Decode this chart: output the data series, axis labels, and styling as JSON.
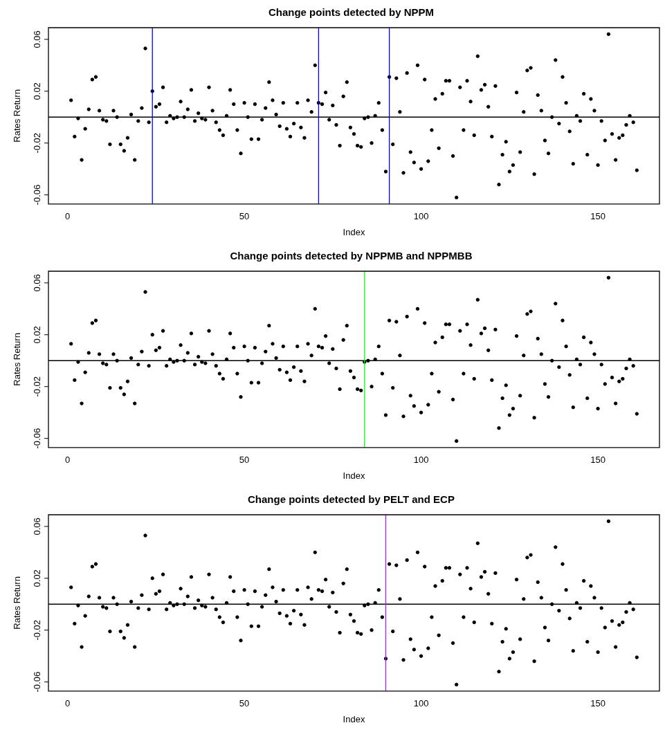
{
  "chart_data": [
    {
      "type": "scatter",
      "title": "Change points detected by NPPM",
      "xlabel": "Index",
      "ylabel": "Rates Return",
      "marker": "circle",
      "grid": false,
      "legend": false,
      "x": [
        1,
        2,
        3,
        4,
        5,
        6,
        7,
        8,
        9,
        10,
        11,
        12,
        13,
        14,
        15,
        16,
        17,
        18,
        19,
        20,
        21,
        22,
        23,
        24,
        25,
        26,
        27,
        28,
        29,
        30,
        31,
        32,
        33,
        34,
        35,
        36,
        37,
        38,
        39,
        40,
        41,
        42,
        43,
        44,
        45,
        46,
        47,
        48,
        49,
        50,
        51,
        52,
        53,
        54,
        55,
        56,
        57,
        58,
        59,
        60,
        61,
        62,
        63,
        64,
        65,
        66,
        67,
        68,
        69,
        70,
        71,
        72,
        73,
        74,
        75,
        76,
        77,
        78,
        79,
        80,
        81,
        82,
        83,
        84,
        85,
        86,
        87,
        88,
        89,
        90,
        91,
        92,
        93,
        94,
        95,
        96,
        97,
        98,
        99,
        100,
        101,
        102,
        103,
        104,
        105,
        106,
        107,
        108,
        109,
        110,
        111,
        112,
        113,
        114,
        115,
        116,
        117,
        118,
        119,
        120,
        121,
        122,
        123,
        124,
        125,
        126,
        127,
        128,
        129,
        130,
        131,
        132,
        133,
        134,
        135,
        136,
        137,
        138,
        139,
        140,
        141,
        142,
        143,
        144,
        145,
        146,
        147,
        148,
        149,
        150,
        151,
        152,
        153,
        154,
        155,
        156,
        157,
        158,
        159,
        160,
        161
      ],
      "series": [
        {
          "color": "#000000",
          "values": [
            0.013,
            -0.015,
            -0.001,
            -0.033,
            -0.009,
            0.006,
            0.029,
            0.031,
            0.005,
            -0.002,
            -0.003,
            -0.021,
            0.005,
            0,
            -0.021,
            -0.026,
            -0.016,
            0.002,
            -0.033,
            -0.003,
            0.007,
            0.053,
            -0.004,
            0.02,
            0.008,
            0.01,
            0.023,
            -0.004,
            0.001,
            -0.001,
            0,
            0.012,
            0,
            0.006,
            0.021,
            -0.003,
            0.003,
            -0.001,
            -0.002,
            0.023,
            0.005,
            -0.004,
            -0.01,
            -0.014,
            0.001,
            0.021,
            0.01,
            -0.01,
            -0.028,
            0.011,
            0,
            -0.017,
            0.01,
            -0.017,
            -0.002,
            0.007,
            0.027,
            0.013,
            0.002,
            -0.007,
            0.011,
            -0.009,
            -0.015,
            -0.005,
            0.011,
            -0.008,
            -0.016,
            0.013,
            0.004,
            0.04,
            0.011,
            0.01,
            0.019,
            -0.002,
            0.009,
            -0.006,
            -0.022,
            0.016,
            0.027,
            -0.008,
            -0.013,
            -0.022,
            -0.023,
            -0.001,
            0,
            -0.02,
            0.001,
            0.011,
            -0.01,
            -0.042,
            0.031,
            -0.021,
            0.03,
            0.004,
            -0.043,
            0.034,
            -0.027,
            -0.035,
            0.04,
            -0.04,
            0.029,
            -0.034,
            -0.01,
            0.014,
            -0.024,
            0.018,
            0.028,
            0.028,
            -0.03,
            -0.062,
            0.023,
            -0.01,
            0.028,
            0.012,
            -0.014,
            0.047,
            0.021,
            0.025,
            0.008,
            -0.015,
            0.024,
            -0.052,
            -0.029,
            -0.019,
            -0.042,
            -0.037,
            0.019,
            -0.027,
            0.004,
            0.036,
            0.038,
            -0.044,
            0.017,
            0.005,
            -0.018,
            -0.028,
            0,
            0.044,
            -0.005,
            0.031,
            0.011,
            -0.011,
            -0.036,
            0.001,
            -0.003,
            0.018,
            -0.029,
            0.014,
            0.005,
            -0.037,
            -0.003,
            -0.018,
            0.064,
            -0.013,
            -0.033,
            -0.016,
            -0.014,
            -0.006,
            0.001,
            -0.004,
            -0.041
          ]
        }
      ],
      "xlim": [
        -5.4,
        167.4
      ],
      "xticks": [
        0,
        50,
        100,
        150
      ],
      "ylim": [
        -0.067,
        0.069
      ],
      "yticks": [
        -0.06,
        -0.02,
        0.02,
        0.06
      ],
      "ref_lines": [
        {
          "axis": "y",
          "value": 0,
          "color": "#000000"
        },
        {
          "axis": "x",
          "value": 24,
          "color": "#0000ff"
        },
        {
          "axis": "x",
          "value": 71,
          "color": "#0000ff"
        },
        {
          "axis": "x",
          "value": 91,
          "color": "#0000ff"
        }
      ]
    },
    {
      "type": "scatter",
      "title": "Change points detected by NPPMB and NPPMBB",
      "xlabel": "Index",
      "ylabel": "Rates Return",
      "marker": "circle",
      "grid": false,
      "legend": false,
      "x": [
        1,
        2,
        3,
        4,
        5,
        6,
        7,
        8,
        9,
        10,
        11,
        12,
        13,
        14,
        15,
        16,
        17,
        18,
        19,
        20,
        21,
        22,
        23,
        24,
        25,
        26,
        27,
        28,
        29,
        30,
        31,
        32,
        33,
        34,
        35,
        36,
        37,
        38,
        39,
        40,
        41,
        42,
        43,
        44,
        45,
        46,
        47,
        48,
        49,
        50,
        51,
        52,
        53,
        54,
        55,
        56,
        57,
        58,
        59,
        60,
        61,
        62,
        63,
        64,
        65,
        66,
        67,
        68,
        69,
        70,
        71,
        72,
        73,
        74,
        75,
        76,
        77,
        78,
        79,
        80,
        81,
        82,
        83,
        84,
        85,
        86,
        87,
        88,
        89,
        90,
        91,
        92,
        93,
        94,
        95,
        96,
        97,
        98,
        99,
        100,
        101,
        102,
        103,
        104,
        105,
        106,
        107,
        108,
        109,
        110,
        111,
        112,
        113,
        114,
        115,
        116,
        117,
        118,
        119,
        120,
        121,
        122,
        123,
        124,
        125,
        126,
        127,
        128,
        129,
        130,
        131,
        132,
        133,
        134,
        135,
        136,
        137,
        138,
        139,
        140,
        141,
        142,
        143,
        144,
        145,
        146,
        147,
        148,
        149,
        150,
        151,
        152,
        153,
        154,
        155,
        156,
        157,
        158,
        159,
        160,
        161
      ],
      "series": [
        {
          "color": "#000000",
          "values": [
            0.013,
            -0.015,
            -0.001,
            -0.033,
            -0.009,
            0.006,
            0.029,
            0.031,
            0.005,
            -0.002,
            -0.003,
            -0.021,
            0.005,
            0,
            -0.021,
            -0.026,
            -0.016,
            0.002,
            -0.033,
            -0.003,
            0.007,
            0.053,
            -0.004,
            0.02,
            0.008,
            0.01,
            0.023,
            -0.004,
            0.001,
            -0.001,
            0,
            0.012,
            0,
            0.006,
            0.021,
            -0.003,
            0.003,
            -0.001,
            -0.002,
            0.023,
            0.005,
            -0.004,
            -0.01,
            -0.014,
            0.001,
            0.021,
            0.01,
            -0.01,
            -0.028,
            0.011,
            0,
            -0.017,
            0.01,
            -0.017,
            -0.002,
            0.007,
            0.027,
            0.013,
            0.002,
            -0.007,
            0.011,
            -0.009,
            -0.015,
            -0.005,
            0.011,
            -0.008,
            -0.016,
            0.013,
            0.004,
            0.04,
            0.011,
            0.01,
            0.019,
            -0.002,
            0.009,
            -0.006,
            -0.022,
            0.016,
            0.027,
            -0.008,
            -0.013,
            -0.022,
            -0.023,
            -0.001,
            0,
            -0.02,
            0.001,
            0.011,
            -0.01,
            -0.042,
            0.031,
            -0.021,
            0.03,
            0.004,
            -0.043,
            0.034,
            -0.027,
            -0.035,
            0.04,
            -0.04,
            0.029,
            -0.034,
            -0.01,
            0.014,
            -0.024,
            0.018,
            0.028,
            0.028,
            -0.03,
            -0.062,
            0.023,
            -0.01,
            0.028,
            0.012,
            -0.014,
            0.047,
            0.021,
            0.025,
            0.008,
            -0.015,
            0.024,
            -0.052,
            -0.029,
            -0.019,
            -0.042,
            -0.037,
            0.019,
            -0.027,
            0.004,
            0.036,
            0.038,
            -0.044,
            0.017,
            0.005,
            -0.018,
            -0.028,
            0,
            0.044,
            -0.005,
            0.031,
            0.011,
            -0.011,
            -0.036,
            0.001,
            -0.003,
            0.018,
            -0.029,
            0.014,
            0.005,
            -0.037,
            -0.003,
            -0.018,
            0.064,
            -0.013,
            -0.033,
            -0.016,
            -0.014,
            -0.006,
            0.001,
            -0.004,
            -0.041
          ]
        }
      ],
      "xlim": [
        -5.4,
        167.4
      ],
      "xticks": [
        0,
        50,
        100,
        150
      ],
      "ylim": [
        -0.067,
        0.069
      ],
      "yticks": [
        -0.06,
        -0.02,
        0.02,
        0.06
      ],
      "ref_lines": [
        {
          "axis": "y",
          "value": 0,
          "color": "#000000"
        },
        {
          "axis": "x",
          "value": 84,
          "color": "#00ff00"
        }
      ]
    },
    {
      "type": "scatter",
      "title": "Change points detected by PELT and ECP",
      "xlabel": "Index",
      "ylabel": "Rates Return",
      "marker": "circle",
      "grid": false,
      "legend": false,
      "x": [
        1,
        2,
        3,
        4,
        5,
        6,
        7,
        8,
        9,
        10,
        11,
        12,
        13,
        14,
        15,
        16,
        17,
        18,
        19,
        20,
        21,
        22,
        23,
        24,
        25,
        26,
        27,
        28,
        29,
        30,
        31,
        32,
        33,
        34,
        35,
        36,
        37,
        38,
        39,
        40,
        41,
        42,
        43,
        44,
        45,
        46,
        47,
        48,
        49,
        50,
        51,
        52,
        53,
        54,
        55,
        56,
        57,
        58,
        59,
        60,
        61,
        62,
        63,
        64,
        65,
        66,
        67,
        68,
        69,
        70,
        71,
        72,
        73,
        74,
        75,
        76,
        77,
        78,
        79,
        80,
        81,
        82,
        83,
        84,
        85,
        86,
        87,
        88,
        89,
        90,
        91,
        92,
        93,
        94,
        95,
        96,
        97,
        98,
        99,
        100,
        101,
        102,
        103,
        104,
        105,
        106,
        107,
        108,
        109,
        110,
        111,
        112,
        113,
        114,
        115,
        116,
        117,
        118,
        119,
        120,
        121,
        122,
        123,
        124,
        125,
        126,
        127,
        128,
        129,
        130,
        131,
        132,
        133,
        134,
        135,
        136,
        137,
        138,
        139,
        140,
        141,
        142,
        143,
        144,
        145,
        146,
        147,
        148,
        149,
        150,
        151,
        152,
        153,
        154,
        155,
        156,
        157,
        158,
        159,
        160,
        161
      ],
      "series": [
        {
          "color": "#000000",
          "values": [
            0.013,
            -0.015,
            -0.001,
            -0.033,
            -0.009,
            0.006,
            0.029,
            0.031,
            0.005,
            -0.002,
            -0.003,
            -0.021,
            0.005,
            0,
            -0.021,
            -0.026,
            -0.016,
            0.002,
            -0.033,
            -0.003,
            0.007,
            0.053,
            -0.004,
            0.02,
            0.008,
            0.01,
            0.023,
            -0.004,
            0.001,
            -0.001,
            0,
            0.012,
            0,
            0.006,
            0.021,
            -0.003,
            0.003,
            -0.001,
            -0.002,
            0.023,
            0.005,
            -0.004,
            -0.01,
            -0.014,
            0.001,
            0.021,
            0.01,
            -0.01,
            -0.028,
            0.011,
            0,
            -0.017,
            0.01,
            -0.017,
            -0.002,
            0.007,
            0.027,
            0.013,
            0.002,
            -0.007,
            0.011,
            -0.009,
            -0.015,
            -0.005,
            0.011,
            -0.008,
            -0.016,
            0.013,
            0.004,
            0.04,
            0.011,
            0.01,
            0.019,
            -0.002,
            0.009,
            -0.006,
            -0.022,
            0.016,
            0.027,
            -0.008,
            -0.013,
            -0.022,
            -0.023,
            -0.001,
            0,
            -0.02,
            0.001,
            0.011,
            -0.01,
            -0.042,
            0.031,
            -0.021,
            0.03,
            0.004,
            -0.043,
            0.034,
            -0.027,
            -0.035,
            0.04,
            -0.04,
            0.029,
            -0.034,
            -0.01,
            0.014,
            -0.024,
            0.018,
            0.028,
            0.028,
            -0.03,
            -0.062,
            0.023,
            -0.01,
            0.028,
            0.012,
            -0.014,
            0.047,
            0.021,
            0.025,
            0.008,
            -0.015,
            0.024,
            -0.052,
            -0.029,
            -0.019,
            -0.042,
            -0.037,
            0.019,
            -0.027,
            0.004,
            0.036,
            0.038,
            -0.044,
            0.017,
            0.005,
            -0.018,
            -0.028,
            0,
            0.044,
            -0.005,
            0.031,
            0.011,
            -0.011,
            -0.036,
            0.001,
            -0.003,
            0.018,
            -0.029,
            0.014,
            0.005,
            -0.037,
            -0.003,
            -0.018,
            0.064,
            -0.013,
            -0.033,
            -0.016,
            -0.014,
            -0.006,
            0.001,
            -0.004,
            -0.041
          ]
        }
      ],
      "xlim": [
        -5.4,
        167.4
      ],
      "xticks": [
        0,
        50,
        100,
        150
      ],
      "ylim": [
        -0.067,
        0.069
      ],
      "yticks": [
        -0.06,
        -0.02,
        0.02,
        0.06
      ],
      "ref_lines": [
        {
          "axis": "y",
          "value": 0,
          "color": "#000000"
        },
        {
          "axis": "x",
          "value": 90,
          "color": "#a020f0"
        }
      ]
    }
  ]
}
